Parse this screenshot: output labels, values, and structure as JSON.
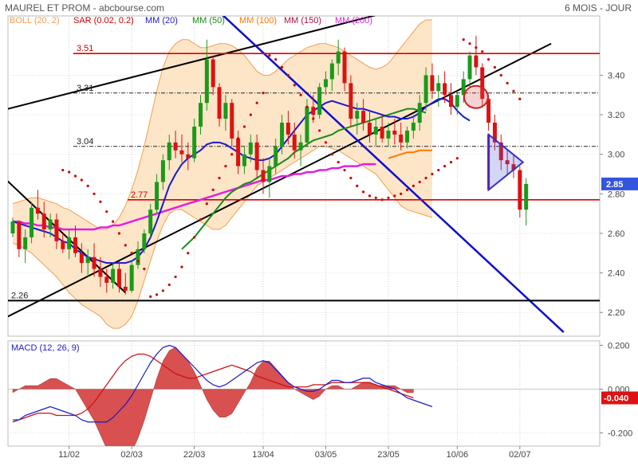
{
  "header": {
    "title": "MAUREL ET PROM - abcbourse.com",
    "period": "6 MOIS - JOUR"
  },
  "legend": [
    {
      "label": "BOLL (20, 2)",
      "color": "#f0a050"
    },
    {
      "label": "SAR (0.02, 0.2)",
      "color": "#cc0000"
    },
    {
      "label": "MM (20)",
      "color": "#1a1acc"
    },
    {
      "label": "MM (50)",
      "color": "#1a8a1a"
    },
    {
      "label": "MM (100)",
      "color": "#ff7700"
    },
    {
      "label": "MM (150)",
      "color": "#b01040"
    },
    {
      "label": "MM (200)",
      "color": "#e020e0"
    }
  ],
  "colors": {
    "up_candle": "#1a9a1a",
    "down_candle": "#dd1111",
    "boll_fill": "#fde5c8",
    "boll_line": "#f0a050",
    "sar": "#cc0000",
    "mm20": "#1a1acc",
    "mm50": "#1a8a1a",
    "mm100": "#ff7700",
    "mm200": "#e020e0",
    "hline": "#dd0000",
    "trend_black": "#000000",
    "trend_blue": "#1010cc",
    "last_price_bg": "#3355dd",
    "macd_last_bg": "#dd1111",
    "macd_line": "#1a1acc",
    "signal_line": "#cc1111",
    "hist_fill": "#d85050"
  },
  "levels": [
    {
      "value": 3.51,
      "label": "3.51",
      "style": "red"
    },
    {
      "value": 3.31,
      "label": "3.31",
      "style": "dashdot"
    },
    {
      "value": 3.04,
      "label": "3.04",
      "style": "dashdot"
    },
    {
      "value": 2.77,
      "label": "2.77",
      "style": "red"
    },
    {
      "value": 2.26,
      "label": "2.26",
      "style": "black"
    }
  ],
  "chart_data": [
    {
      "type": "candlestick",
      "x_ticks": [
        "11/02",
        "02/03",
        "22/03",
        "13/04",
        "03/05",
        "23/05",
        "10/06",
        "02/07"
      ],
      "y_ticks": [
        "2.20",
        "2.40",
        "2.60",
        "2.80",
        "3.00",
        "3.20",
        "3.40"
      ],
      "ylim": [
        2.08,
        3.7
      ],
      "last_price": "2.85",
      "candles": [
        [
          2.6,
          2.68,
          2.58,
          2.66
        ],
        [
          2.66,
          2.66,
          2.48,
          2.52
        ],
        [
          2.52,
          2.62,
          2.45,
          2.58
        ],
        [
          2.58,
          2.76,
          2.55,
          2.73
        ],
        [
          2.73,
          2.82,
          2.67,
          2.7
        ],
        [
          2.7,
          2.76,
          2.58,
          2.62
        ],
        [
          2.62,
          2.7,
          2.58,
          2.67
        ],
        [
          2.67,
          2.7,
          2.52,
          2.56
        ],
        [
          2.56,
          2.6,
          2.5,
          2.52
        ],
        [
          2.52,
          2.62,
          2.47,
          2.58
        ],
        [
          2.58,
          2.64,
          2.48,
          2.5
        ],
        [
          2.5,
          2.55,
          2.4,
          2.45
        ],
        [
          2.45,
          2.52,
          2.38,
          2.48
        ],
        [
          2.48,
          2.55,
          2.38,
          2.42
        ],
        [
          2.42,
          2.48,
          2.33,
          2.38
        ],
        [
          2.38,
          2.42,
          2.3,
          2.35
        ],
        [
          2.35,
          2.45,
          2.32,
          2.42
        ],
        [
          2.42,
          2.46,
          2.3,
          2.33
        ],
        [
          2.33,
          2.4,
          2.29,
          2.31
        ],
        [
          2.31,
          2.46,
          2.3,
          2.44
        ],
        [
          2.44,
          2.56,
          2.42,
          2.52
        ],
        [
          2.52,
          2.62,
          2.5,
          2.6
        ],
        [
          2.6,
          2.75,
          2.58,
          2.72
        ],
        [
          2.72,
          2.9,
          2.7,
          2.86
        ],
        [
          2.86,
          3.0,
          2.82,
          2.97
        ],
        [
          2.97,
          3.1,
          2.92,
          3.06
        ],
        [
          3.06,
          3.12,
          2.98,
          3.02
        ],
        [
          3.02,
          3.1,
          2.96,
          3.0
        ],
        [
          3.0,
          3.06,
          2.92,
          2.98
        ],
        [
          2.98,
          3.18,
          2.96,
          3.14
        ],
        [
          3.14,
          3.3,
          3.1,
          3.26
        ],
        [
          3.26,
          3.58,
          3.22,
          3.48
        ],
        [
          3.48,
          3.5,
          3.3,
          3.34
        ],
        [
          3.34,
          3.36,
          3.14,
          3.18
        ],
        [
          3.18,
          3.3,
          3.12,
          3.26
        ],
        [
          3.26,
          3.28,
          3.04,
          3.08
        ],
        [
          3.08,
          3.12,
          2.9,
          2.94
        ],
        [
          2.94,
          3.04,
          2.9,
          3.0
        ],
        [
          3.0,
          3.1,
          2.96,
          3.06
        ],
        [
          3.06,
          3.1,
          2.88,
          2.92
        ],
        [
          2.92,
          2.98,
          2.8,
          2.86
        ],
        [
          2.86,
          2.98,
          2.78,
          2.94
        ],
        [
          2.94,
          3.08,
          2.9,
          3.04
        ],
        [
          3.04,
          3.2,
          3.0,
          3.16
        ],
        [
          3.16,
          3.22,
          3.05,
          3.1
        ],
        [
          3.1,
          3.16,
          2.98,
          3.02
        ],
        [
          3.02,
          3.1,
          2.94,
          3.06
        ],
        [
          3.06,
          3.28,
          3.04,
          3.24
        ],
        [
          3.24,
          3.3,
          3.16,
          3.2
        ],
        [
          3.2,
          3.36,
          3.18,
          3.34
        ],
        [
          3.34,
          3.42,
          3.3,
          3.38
        ],
        [
          3.38,
          3.48,
          3.32,
          3.46
        ],
        [
          3.46,
          3.58,
          3.4,
          3.52
        ],
        [
          3.52,
          3.54,
          3.32,
          3.36
        ],
        [
          3.36,
          3.4,
          3.14,
          3.18
        ],
        [
          3.18,
          3.26,
          3.1,
          3.22
        ],
        [
          3.22,
          3.28,
          3.12,
          3.16
        ],
        [
          3.16,
          3.22,
          3.06,
          3.1
        ],
        [
          3.1,
          3.18,
          3.04,
          3.14
        ],
        [
          3.14,
          3.2,
          3.06,
          3.08
        ],
        [
          3.08,
          3.16,
          3.04,
          3.12
        ],
        [
          3.12,
          3.18,
          3.05,
          3.1
        ],
        [
          3.1,
          3.16,
          3.02,
          3.06
        ],
        [
          3.06,
          3.14,
          3.03,
          3.12
        ],
        [
          3.12,
          3.2,
          3.08,
          3.16
        ],
        [
          3.16,
          3.3,
          3.12,
          3.26
        ],
        [
          3.26,
          3.44,
          3.22,
          3.4
        ],
        [
          3.4,
          3.46,
          3.28,
          3.32
        ],
        [
          3.32,
          3.4,
          3.24,
          3.36
        ],
        [
          3.36,
          3.42,
          3.26,
          3.3
        ],
        [
          3.3,
          3.36,
          3.2,
          3.24
        ],
        [
          3.24,
          3.32,
          3.2,
          3.3
        ],
        [
          3.3,
          3.42,
          3.26,
          3.38
        ],
        [
          3.38,
          3.52,
          3.34,
          3.5
        ],
        [
          3.5,
          3.6,
          3.4,
          3.44
        ],
        [
          3.44,
          3.46,
          3.24,
          3.28
        ],
        [
          3.28,
          3.3,
          3.12,
          3.16
        ],
        [
          3.16,
          3.2,
          3.02,
          3.06
        ],
        [
          3.06,
          3.1,
          2.92,
          2.97
        ],
        [
          2.97,
          3.02,
          2.9,
          2.95
        ],
        [
          2.95,
          3.0,
          2.88,
          2.92
        ],
        [
          2.92,
          2.94,
          2.68,
          2.72
        ],
        [
          2.72,
          2.88,
          2.64,
          2.85
        ]
      ],
      "mm20": [
        2.66,
        2.65,
        2.64,
        2.63,
        2.62,
        2.61,
        2.6,
        2.58,
        2.56,
        2.55,
        2.52,
        2.5,
        2.48,
        2.47,
        2.46,
        2.45,
        2.45,
        2.45,
        2.45,
        2.46,
        2.48,
        2.52,
        2.58,
        2.66,
        2.75,
        2.84,
        2.9,
        2.95,
        2.98,
        3.0,
        3.02,
        3.05,
        3.06,
        3.06,
        3.05,
        3.03,
        3.01,
        2.99,
        2.98,
        2.97,
        2.97,
        2.98,
        3.0,
        3.04,
        3.08,
        3.12,
        3.16,
        3.2,
        3.22,
        3.24,
        3.26,
        3.27,
        3.26,
        3.25,
        3.24,
        3.23,
        3.23,
        3.22,
        3.21,
        3.2,
        3.19,
        3.19,
        3.18,
        3.18,
        3.19,
        3.21,
        3.24,
        3.26,
        3.28,
        3.28,
        3.26,
        3.22,
        3.19,
        3.17
      ],
      "mm50": [
        null,
        null,
        null,
        null,
        null,
        null,
        null,
        null,
        null,
        null,
        null,
        null,
        null,
        null,
        null,
        null,
        null,
        null,
        null,
        null,
        null,
        null,
        null,
        null,
        null,
        null,
        null,
        2.52,
        2.55,
        2.58,
        2.62,
        2.66,
        2.7,
        2.74,
        2.78,
        2.81,
        2.83,
        2.85,
        2.86,
        2.88,
        2.9,
        2.92,
        2.94,
        2.96,
        2.98,
        3.01,
        3.03,
        3.05,
        3.07,
        3.08,
        3.09,
        3.1,
        3.12,
        3.13,
        3.14,
        3.15,
        3.16,
        3.17,
        3.18,
        3.19,
        3.2,
        3.21,
        3.22,
        3.23,
        3.23,
        3.22,
        3.21
      ],
      "mm100": [
        2.98,
        2.99,
        3.0,
        3.01,
        3.01,
        3.02,
        3.02,
        3.02
      ],
      "mm200": [
        2.66,
        2.66,
        2.65,
        2.65,
        2.64,
        2.64,
        2.63,
        2.63,
        2.62,
        2.62,
        2.62,
        2.62,
        2.62,
        2.62,
        2.63,
        2.63,
        2.64,
        2.64,
        2.65,
        2.66,
        2.67,
        2.68,
        2.69,
        2.7,
        2.71,
        2.72,
        2.73,
        2.74,
        2.75,
        2.76,
        2.77,
        2.78,
        2.79,
        2.8,
        2.81,
        2.82,
        2.83,
        2.84,
        2.85,
        2.86,
        2.87,
        2.87,
        2.88,
        2.89,
        2.89,
        2.9,
        2.9,
        2.91,
        2.91,
        2.92,
        2.92,
        2.93,
        2.93,
        2.94,
        2.94,
        2.94,
        2.95,
        2.95,
        2.95
      ],
      "boll_upper": [
        2.75,
        2.76,
        2.77,
        2.78,
        2.78,
        2.77,
        2.76,
        2.75,
        2.73,
        2.72,
        2.7,
        2.68,
        2.66,
        2.64,
        2.62,
        2.62,
        2.64,
        2.68,
        2.74,
        2.82,
        2.92,
        3.04,
        3.18,
        3.32,
        3.44,
        3.52,
        3.56,
        3.58,
        3.58,
        3.56,
        3.54,
        3.54,
        3.55,
        3.56,
        3.56,
        3.55,
        3.53,
        3.5,
        3.46,
        3.42,
        3.4,
        3.4,
        3.42,
        3.45,
        3.48,
        3.5,
        3.52,
        3.54,
        3.55,
        3.56,
        3.56,
        3.55,
        3.54,
        3.52,
        3.5,
        3.48,
        3.46,
        3.44,
        3.43,
        3.44,
        3.46,
        3.5,
        3.54,
        3.58,
        3.62,
        3.66,
        3.68,
        3.68
      ],
      "boll_lower": [
        2.55,
        2.54,
        2.52,
        2.5,
        2.47,
        2.44,
        2.41,
        2.38,
        2.34,
        2.3,
        2.27,
        2.24,
        2.22,
        2.2,
        2.18,
        2.14,
        2.12,
        2.12,
        2.14,
        2.18,
        2.26,
        2.36,
        2.46,
        2.56,
        2.64,
        2.7,
        2.72,
        2.72,
        2.7,
        2.68,
        2.66,
        2.64,
        2.62,
        2.62,
        2.64,
        2.68,
        2.72,
        2.76,
        2.8,
        2.84,
        2.86,
        2.88,
        2.9,
        2.92,
        2.94,
        2.96,
        2.98,
        3.0,
        3.02,
        3.04,
        3.04,
        3.03,
        3.02,
        3.0,
        2.98,
        2.96,
        2.94,
        2.92,
        2.9,
        2.86,
        2.82,
        2.78,
        2.74,
        2.72,
        2.71,
        2.7,
        2.69,
        2.68
      ],
      "sar": [
        [
          8,
          2.92
        ],
        [
          9,
          2.91
        ],
        [
          10,
          2.89
        ],
        [
          11,
          2.87
        ],
        [
          12,
          2.84
        ],
        [
          13,
          2.8
        ],
        [
          14,
          2.76
        ],
        [
          15,
          2.71
        ],
        [
          16,
          2.66
        ],
        [
          17,
          2.6
        ],
        [
          18,
          2.54
        ],
        [
          19,
          2.5
        ],
        [
          20,
          2.46
        ],
        [
          21,
          2.42
        ],
        [
          22,
          2.28
        ],
        [
          23,
          2.29
        ],
        [
          24,
          2.31
        ],
        [
          25,
          2.34
        ],
        [
          26,
          2.38
        ],
        [
          27,
          2.43
        ],
        [
          28,
          2.5
        ],
        [
          29,
          2.58
        ],
        [
          30,
          2.67
        ],
        [
          31,
          2.75
        ],
        [
          32,
          2.82
        ],
        [
          33,
          2.88
        ],
        [
          34,
          2.94
        ],
        [
          35,
          3.0
        ],
        [
          36,
          3.08
        ],
        [
          37,
          3.14
        ],
        [
          38,
          3.2
        ],
        [
          39,
          3.26
        ],
        [
          40,
          3.31
        ],
        [
          41,
          3.5
        ],
        [
          42,
          3.48
        ],
        [
          43,
          3.44
        ],
        [
          44,
          3.4
        ],
        [
          45,
          3.35
        ],
        [
          46,
          3.3
        ],
        [
          47,
          3.24
        ],
        [
          48,
          3.18
        ],
        [
          49,
          3.12
        ],
        [
          50,
          3.06
        ],
        [
          51,
          3.0
        ],
        [
          52,
          2.96
        ],
        [
          53,
          2.92
        ],
        [
          54,
          2.88
        ],
        [
          55,
          2.84
        ],
        [
          56,
          2.81
        ],
        [
          57,
          2.79
        ],
        [
          58,
          2.78
        ],
        [
          59,
          2.77
        ],
        [
          60,
          2.78
        ],
        [
          61,
          2.79
        ],
        [
          62,
          2.8
        ],
        [
          63,
          2.82
        ],
        [
          64,
          2.84
        ],
        [
          65,
          2.86
        ],
        [
          66,
          2.88
        ],
        [
          67,
          2.9
        ],
        [
          68,
          2.92
        ],
        [
          69,
          2.94
        ],
        [
          70,
          2.96
        ],
        [
          71,
          2.98
        ],
        [
          72,
          3.58
        ],
        [
          73,
          3.56
        ],
        [
          74,
          3.54
        ],
        [
          75,
          3.52
        ],
        [
          76,
          3.48
        ],
        [
          77,
          3.44
        ],
        [
          78,
          3.4
        ],
        [
          79,
          3.36
        ],
        [
          80,
          3.32
        ],
        [
          81,
          3.28
        ]
      ]
    },
    {
      "type": "macd",
      "title": "MACD (12, 26, 9)",
      "y_ticks": [
        "0.200",
        "0.000",
        "-0.200"
      ],
      "ylim": [
        -0.26,
        0.22
      ],
      "last_value": "-0.040",
      "macd": [
        -0.15,
        -0.14,
        -0.12,
        -0.11,
        -0.1,
        -0.09,
        -0.08,
        -0.09,
        -0.1,
        -0.11,
        -0.12,
        -0.14,
        -0.15,
        -0.15,
        -0.15,
        -0.15,
        -0.13,
        -0.1,
        -0.07,
        -0.03,
        0.02,
        0.07,
        0.12,
        0.16,
        0.19,
        0.2,
        0.19,
        0.16,
        0.13,
        0.1,
        0.07,
        0.04,
        0.02,
        0.01,
        0.02,
        0.04,
        0.06,
        0.08,
        0.1,
        0.12,
        0.13,
        0.12,
        0.09,
        0.06,
        0.03,
        0.01,
        0.0,
        -0.01,
        -0.01,
        0.0,
        0.02,
        0.04,
        0.04,
        0.03,
        0.03,
        0.04,
        0.05,
        0.05,
        0.03,
        0.02,
        0.01,
        0.0,
        -0.02,
        -0.04,
        -0.05,
        -0.06,
        -0.07,
        -0.08
      ],
      "signal": [
        -0.14,
        -0.14,
        -0.13,
        -0.12,
        -0.11,
        -0.11,
        -0.11,
        -0.12,
        -0.12,
        -0.12,
        -0.12,
        -0.11,
        -0.09,
        -0.06,
        -0.02,
        0.02,
        0.06,
        0.1,
        0.13,
        0.15,
        0.16,
        0.16,
        0.15,
        0.13,
        0.11,
        0.09,
        0.07,
        0.06,
        0.05,
        0.05,
        0.06,
        0.07,
        0.08,
        0.09,
        0.1,
        0.11,
        0.1,
        0.09,
        0.08,
        0.06,
        0.05,
        0.04,
        0.03,
        0.02,
        0.01,
        0.01,
        0.01,
        0.01,
        0.02,
        0.02,
        0.02,
        0.03,
        0.03,
        0.03,
        0.03,
        0.03,
        0.03,
        0.03,
        0.02,
        0.01,
        0.0,
        -0.01,
        -0.02,
        -0.03,
        -0.04
      ]
    }
  ]
}
